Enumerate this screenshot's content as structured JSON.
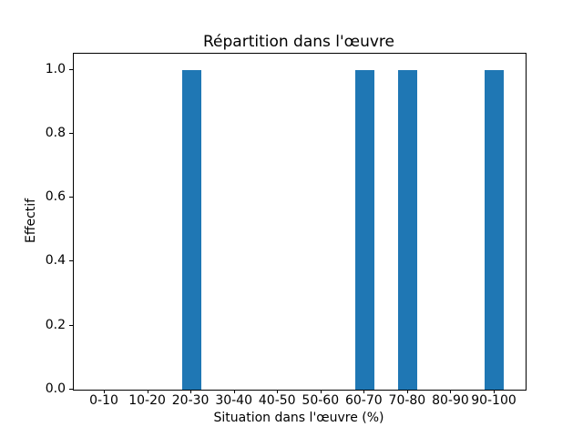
{
  "chart_data": {
    "type": "bar",
    "title": "Répartition dans l'œuvre",
    "xlabel": "Situation dans l'œuvre (%)",
    "ylabel": "Effectif",
    "categories": [
      "0-10",
      "10-20",
      "20-30",
      "30-40",
      "40-50",
      "50-60",
      "60-70",
      "70-80",
      "80-90",
      "90-100"
    ],
    "values": [
      0,
      0,
      1,
      0,
      0,
      0,
      1,
      1,
      0,
      1
    ],
    "ylim": [
      0,
      1.05
    ],
    "ytick_labels": [
      "0.0",
      "0.2",
      "0.4",
      "0.6",
      "0.8",
      "1.0"
    ],
    "ytick_values": [
      0.0,
      0.2,
      0.4,
      0.6,
      0.8,
      1.0
    ],
    "bar_color": "#1f77b4",
    "grid": false,
    "legend": null
  }
}
